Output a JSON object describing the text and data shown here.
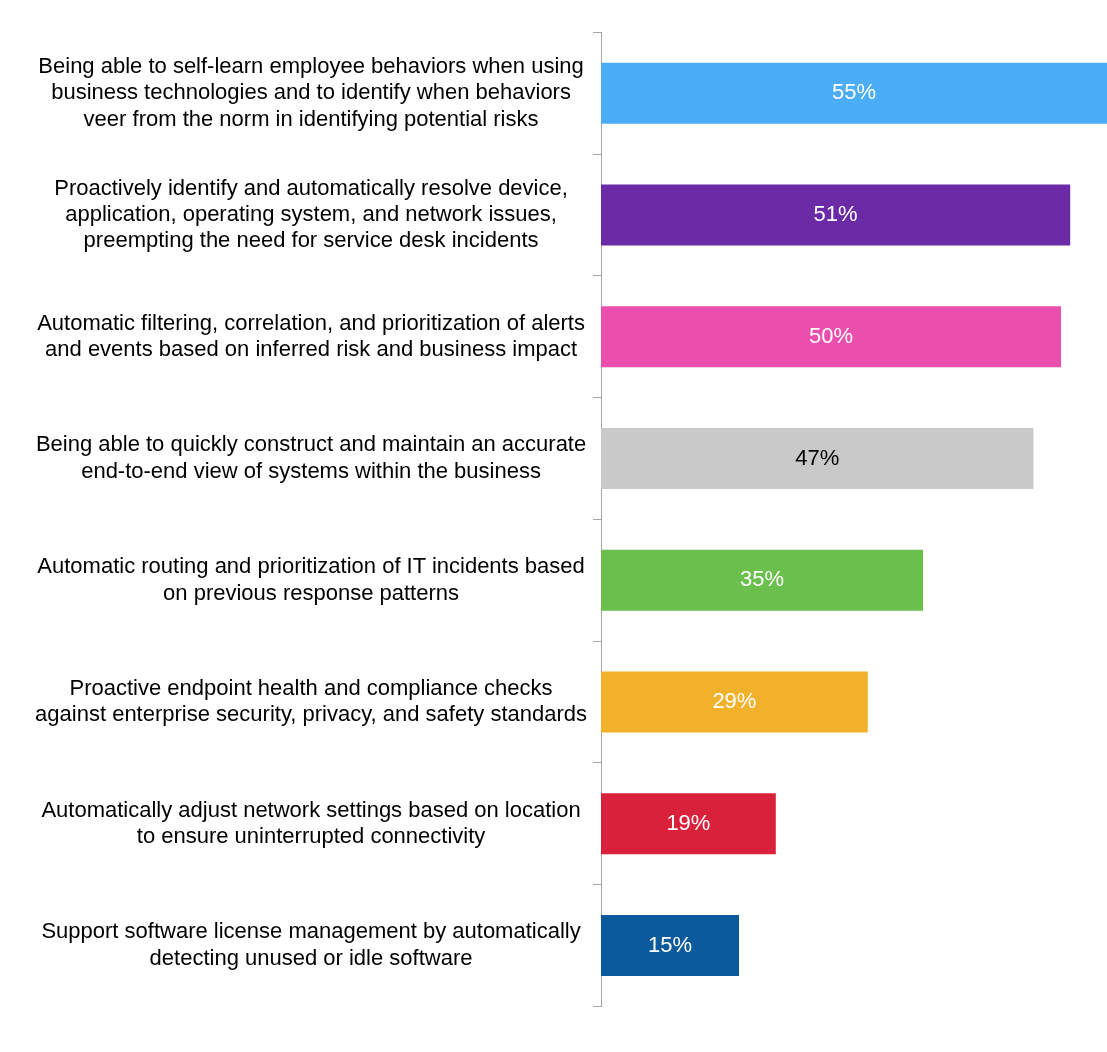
{
  "chart_data": {
    "type": "bar",
    "orientation": "horizontal",
    "categories": [
      "Being able to self-learn employee behaviors when using business technologies and to identify when behaviors veer from the norm in identifying potential risks",
      "Proactively identify and automatically resolve device, application, operating system, and network issues, preempting the need for service desk incidents",
      "Automatic filtering, correlation, and prioritization of alerts and events based on inferred risk and business impact",
      "Being able to quickly construct and maintain an accurate end-to-end view of systems within the business",
      "Automatic routing and prioritization of IT incidents based on previous response patterns",
      "Proactive endpoint health and compliance checks against enterprise security, privacy, and safety standards",
      "Automatically adjust network settings based on location to ensure uninterrupted connectivity",
      "Support software license management by automatically detecting unused or idle software"
    ],
    "values": [
      55,
      51,
      50,
      47,
      35,
      29,
      19,
      15
    ],
    "colors": [
      "#4badf7",
      "#6b2ba6",
      "#eb4fad",
      "#c9c9c9",
      "#6bbf4c",
      "#f2b12b",
      "#da213c",
      "#0b5a9b"
    ],
    "value_labels": [
      "55%",
      "51%",
      "50%",
      "47%",
      "35%",
      "29%",
      "19%",
      "15%"
    ],
    "xlim": [
      0,
      55
    ],
    "tick_labels": "y"
  }
}
